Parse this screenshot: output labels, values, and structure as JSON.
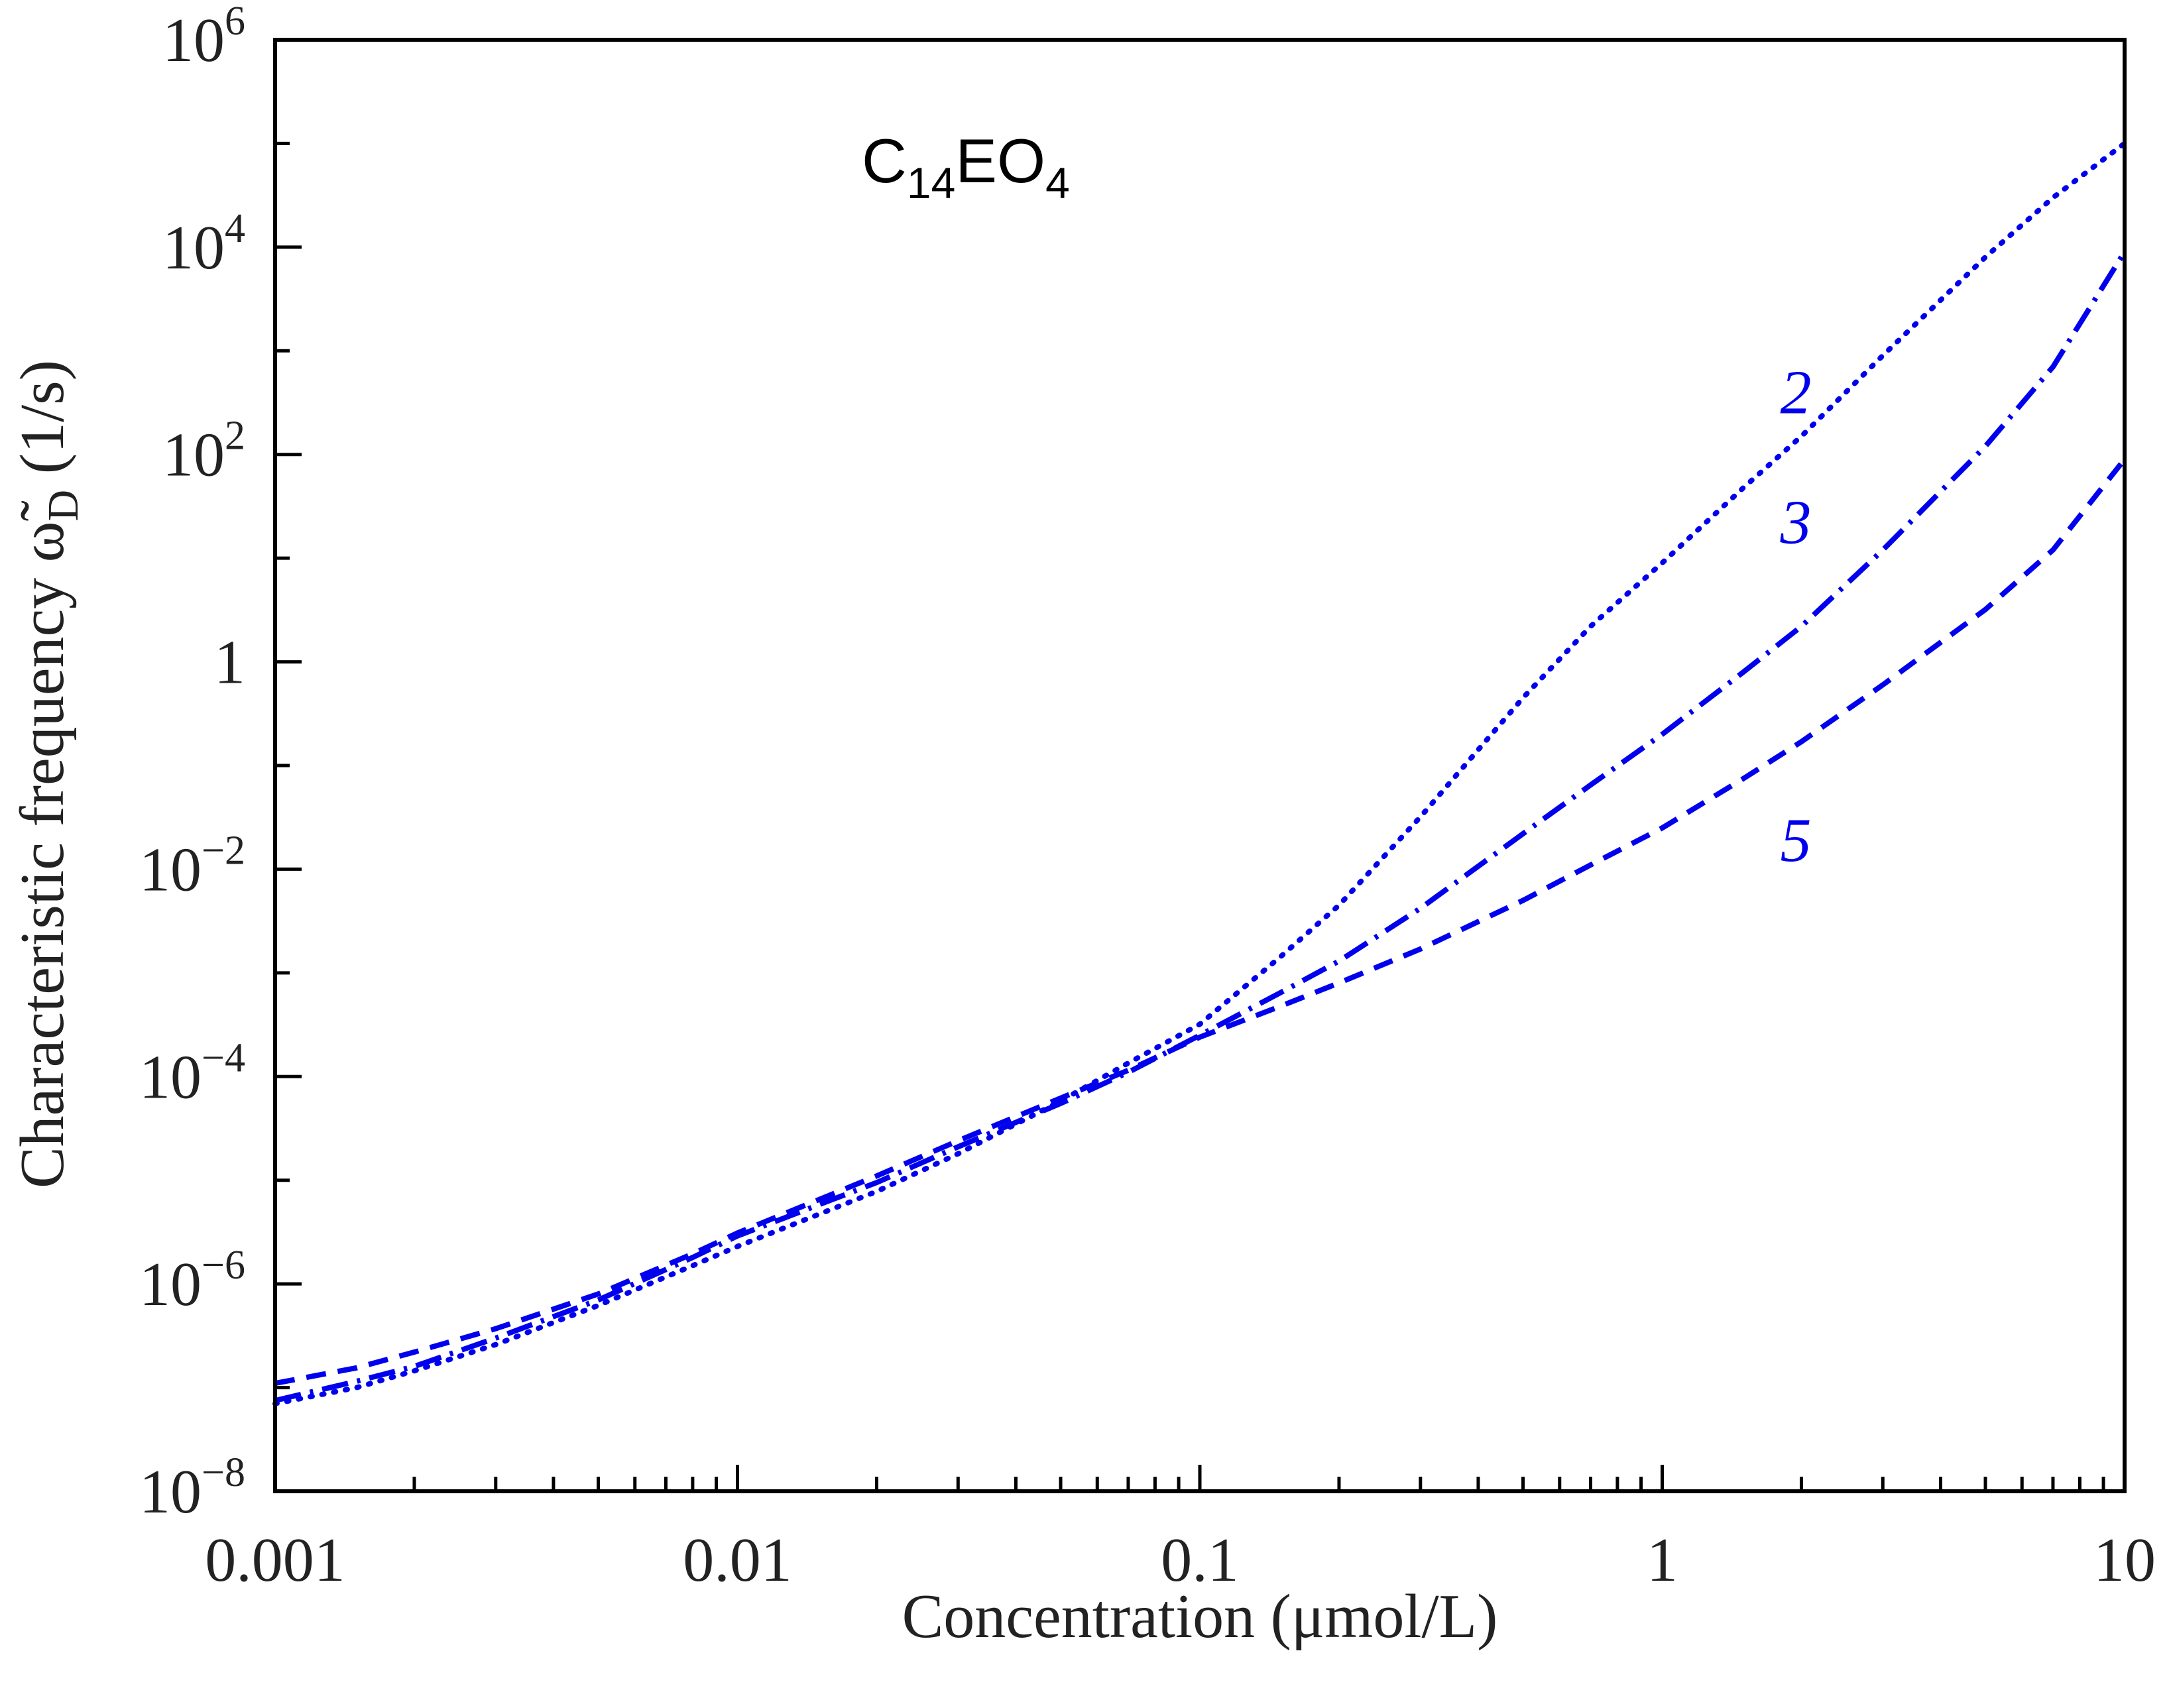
{
  "chart_data": {
    "type": "line",
    "title": "",
    "annotation": {
      "base": "C",
      "sub1": "14",
      "mid": "EO",
      "sub2": "4"
    },
    "xlabel": "Concentration (μmol/L)",
    "ylabel": {
      "main": "Characteristic frequency ",
      "symbol": "ω̃",
      "sub": "D",
      "unit": " (1/s)"
    },
    "x_scale": "log",
    "y_scale": "log",
    "xlim": [
      0.001,
      10
    ],
    "ylim": [
      1e-08,
      1000000.0
    ],
    "x_ticks": [
      {
        "value": 0.001,
        "label": "0.001"
      },
      {
        "value": 0.01,
        "label": "0.01"
      },
      {
        "value": 0.1,
        "label": "0.1"
      },
      {
        "value": 1,
        "label": "1"
      },
      {
        "value": 10,
        "label": "10"
      }
    ],
    "y_ticks": [
      {
        "value": 1e-08,
        "base": "10",
        "exp": "−8"
      },
      {
        "value": 1e-06,
        "base": "10",
        "exp": "−6"
      },
      {
        "value": 0.0001,
        "base": "10",
        "exp": "−4"
      },
      {
        "value": 0.01,
        "base": "10",
        "exp": "−2"
      },
      {
        "value": 1,
        "base": "1",
        "exp": ""
      },
      {
        "value": 100.0,
        "base": "10",
        "exp": "2"
      },
      {
        "value": 10000.0,
        "base": "10",
        "exp": "4"
      },
      {
        "value": 1000000.0,
        "base": "10",
        "exp": "6"
      }
    ],
    "series": [
      {
        "name": "2",
        "style": "dotted",
        "color": "#0000ee",
        "x": [
          0.001,
          0.0015,
          0.002,
          0.003,
          0.005,
          0.008,
          0.01,
          0.02,
          0.03,
          0.05,
          0.07,
          0.1,
          0.15,
          0.2,
          0.3,
          0.5,
          0.7,
          1,
          1.5,
          2,
          3,
          5,
          7,
          10
        ],
        "y": [
          7e-08,
          1e-07,
          1.45e-07,
          2.6e-07,
          6.2e-07,
          1.5e-06,
          2.3e-06,
          7.8e-06,
          1.8e-05,
          5.8e-05,
          0.000135,
          0.00032,
          0.00145,
          0.0045,
          0.032,
          0.45,
          2.2,
          9,
          48,
          150,
          900,
          8000,
          30000,
          100000
        ],
        "label_at": [
          1.8,
          250
        ]
      },
      {
        "name": "3",
        "style": "dashdot",
        "color": "#0000ee",
        "x": [
          0.001,
          0.0015,
          0.002,
          0.003,
          0.005,
          0.008,
          0.01,
          0.02,
          0.03,
          0.05,
          0.07,
          0.1,
          0.15,
          0.2,
          0.3,
          0.5,
          0.7,
          1,
          1.5,
          2,
          3,
          5,
          7,
          10
        ],
        "y": [
          7.5e-08,
          1.15e-07,
          1.6e-07,
          3e-07,
          7e-07,
          1.8e-06,
          2.9e-06,
          9.5e-06,
          2.1e-05,
          5.5e-05,
          0.00011,
          0.00025,
          0.00065,
          0.0013,
          0.0042,
          0.022,
          0.065,
          0.2,
          0.8,
          2.2,
          12,
          120,
          700,
          9000
        ],
        "label_at": [
          1.8,
          14
        ]
      },
      {
        "name": "5",
        "style": "dashed",
        "color": "#0000ee",
        "x": [
          0.001,
          0.0015,
          0.002,
          0.003,
          0.005,
          0.008,
          0.01,
          0.02,
          0.03,
          0.05,
          0.07,
          0.1,
          0.15,
          0.2,
          0.3,
          0.5,
          0.7,
          1,
          1.5,
          2,
          3,
          5,
          7,
          10
        ],
        "y": [
          1.1e-07,
          1.55e-07,
          2.2e-07,
          3.7e-07,
          8e-07,
          1.95e-06,
          3.1e-06,
          1.1e-05,
          2.4e-05,
          6.2e-05,
          0.000115,
          0.00024,
          0.00048,
          0.0008,
          0.0017,
          0.005,
          0.011,
          0.025,
          0.075,
          0.17,
          0.6,
          3.2,
          12,
          90
        ],
        "label_at": [
          1.8,
          0.012
        ]
      }
    ],
    "grid": false,
    "legend": "none"
  }
}
